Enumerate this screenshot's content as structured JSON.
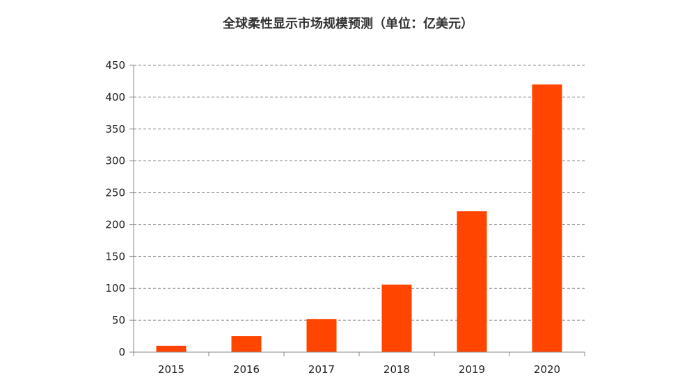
{
  "chart_data": {
    "type": "bar",
    "title": "全球柔性显示市场规模预测（单位：亿美元）",
    "xlabel": "",
    "ylabel": "",
    "categories": [
      "2015",
      "2016",
      "2017",
      "2018",
      "2019",
      "2020"
    ],
    "values": [
      10,
      25,
      52,
      106,
      221,
      420
    ],
    "ylim": [
      0,
      450
    ],
    "yticks": [
      0,
      50,
      100,
      150,
      200,
      250,
      300,
      350,
      400,
      450
    ],
    "grid": true,
    "legend": "none",
    "bar_color": "#FF4500"
  }
}
